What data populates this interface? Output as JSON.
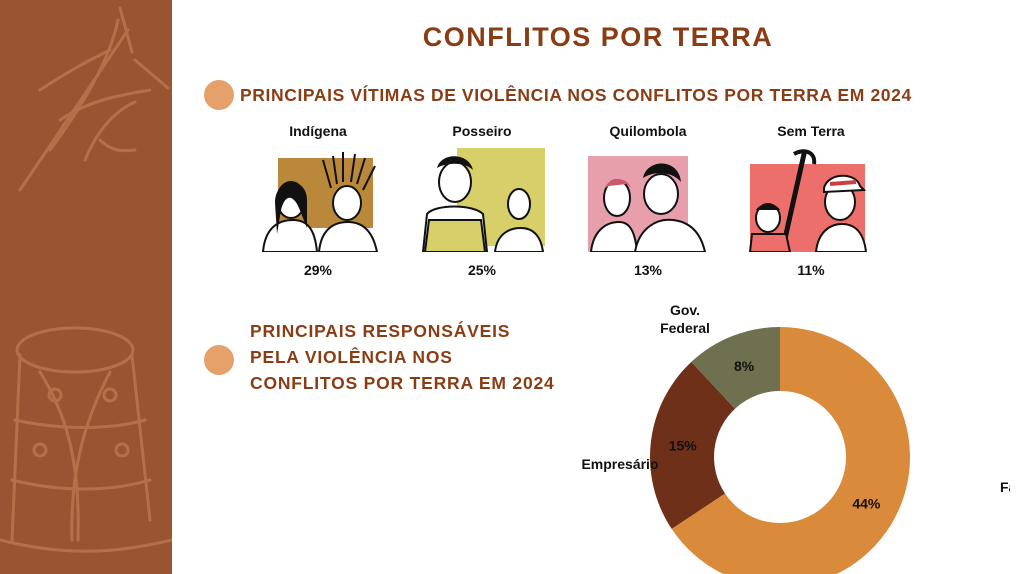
{
  "title": "CONFLITOS POR TERRA",
  "victims_section": {
    "heading": "PRINCIPAIS VÍTIMAS DE VIOLÊNCIA NOS CONFLITOS POR TERRA EM 2024",
    "items": [
      {
        "label": "Indígena",
        "percent": "29%",
        "color": "#b9883a"
      },
      {
        "label": "Posseiro",
        "percent": "25%",
        "color": "#d6cf6a"
      },
      {
        "label": "Quilombola",
        "percent": "13%",
        "color": "#e7a0ab"
      },
      {
        "label": "Sem Terra",
        "percent": "11%",
        "color": "#ec6f6c"
      }
    ]
  },
  "responsible_section": {
    "heading_lines": [
      "PRINCIPAIS RESPONSÁVEIS",
      "PELA VIOLÊNCIA NOS",
      "CONFLITOS POR TERRA EM 2024"
    ]
  },
  "chart_data": {
    "type": "pie",
    "variant": "donut",
    "series": [
      {
        "name": "Fazendeiro",
        "value": 44,
        "label": "44%",
        "color": "#d98a3a"
      },
      {
        "name": "Empresário",
        "value": 15,
        "label": "15%",
        "color": "#6e3018"
      },
      {
        "name": "Gov. Federal",
        "value": 8,
        "label": "8%",
        "color": "#6f7050"
      }
    ],
    "legend": "none"
  }
}
